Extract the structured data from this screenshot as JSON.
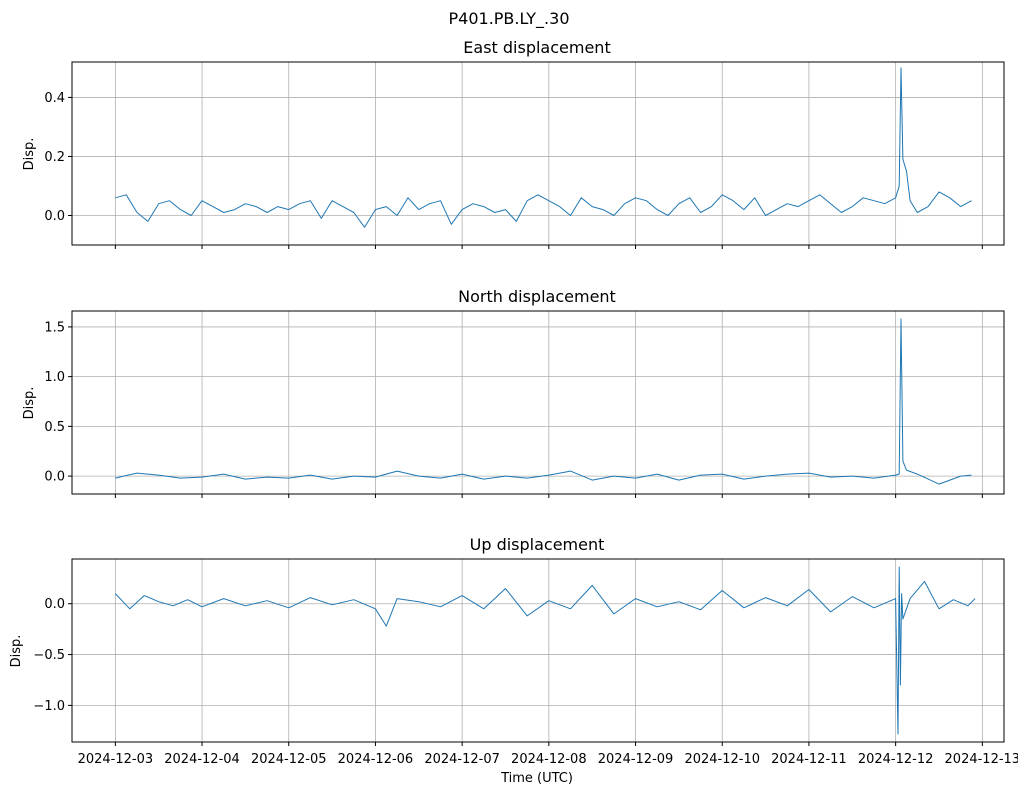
{
  "figure": {
    "suptitle": "P401.PB.LY_.30",
    "xlabel": "Time (UTC)"
  },
  "chart_data": [
    {
      "type": "line",
      "title": "East displacement",
      "ylabel": "Disp.",
      "xlabel": "",
      "grid": true,
      "color": "#1f77b4",
      "xlim": [
        "2024-12-02T12:00",
        "2024-12-13T06:00"
      ],
      "ylim": [
        -0.1,
        0.52
      ],
      "yticks": [
        0.0,
        0.2,
        0.4
      ],
      "yticklabels": [
        "0.0",
        "0.2",
        "0.4"
      ],
      "xticks": [
        "2024-12-03",
        "2024-12-04",
        "2024-12-05",
        "2024-12-06",
        "2024-12-07",
        "2024-12-08",
        "2024-12-09",
        "2024-12-10",
        "2024-12-11",
        "2024-12-12",
        "2024-12-13"
      ],
      "show_xticklabels": false,
      "series": [
        {
          "x": [
            "2024-12-03T00:00",
            "2024-12-03T03:00",
            "2024-12-03T06:00",
            "2024-12-03T09:00",
            "2024-12-03T12:00",
            "2024-12-03T15:00",
            "2024-12-03T18:00",
            "2024-12-03T21:00",
            "2024-12-04T00:00",
            "2024-12-04T03:00",
            "2024-12-04T06:00",
            "2024-12-04T09:00",
            "2024-12-04T12:00",
            "2024-12-04T15:00",
            "2024-12-04T18:00",
            "2024-12-04T21:00",
            "2024-12-05T00:00",
            "2024-12-05T03:00",
            "2024-12-05T06:00",
            "2024-12-05T09:00",
            "2024-12-05T12:00",
            "2024-12-05T15:00",
            "2024-12-05T18:00",
            "2024-12-05T21:00",
            "2024-12-06T00:00",
            "2024-12-06T03:00",
            "2024-12-06T06:00",
            "2024-12-06T09:00",
            "2024-12-06T12:00",
            "2024-12-06T15:00",
            "2024-12-06T18:00",
            "2024-12-06T21:00",
            "2024-12-07T00:00",
            "2024-12-07T03:00",
            "2024-12-07T06:00",
            "2024-12-07T09:00",
            "2024-12-07T12:00",
            "2024-12-07T15:00",
            "2024-12-07T18:00",
            "2024-12-07T21:00",
            "2024-12-08T00:00",
            "2024-12-08T03:00",
            "2024-12-08T06:00",
            "2024-12-08T09:00",
            "2024-12-08T12:00",
            "2024-12-08T15:00",
            "2024-12-08T18:00",
            "2024-12-08T21:00",
            "2024-12-09T00:00",
            "2024-12-09T03:00",
            "2024-12-09T06:00",
            "2024-12-09T09:00",
            "2024-12-09T12:00",
            "2024-12-09T15:00",
            "2024-12-09T18:00",
            "2024-12-09T21:00",
            "2024-12-10T00:00",
            "2024-12-10T03:00",
            "2024-12-10T06:00",
            "2024-12-10T09:00",
            "2024-12-10T12:00",
            "2024-12-10T15:00",
            "2024-12-10T18:00",
            "2024-12-10T21:00",
            "2024-12-11T00:00",
            "2024-12-11T03:00",
            "2024-12-11T06:00",
            "2024-12-11T09:00",
            "2024-12-11T12:00",
            "2024-12-11T15:00",
            "2024-12-11T18:00",
            "2024-12-11T21:00",
            "2024-12-12T00:00",
            "2024-12-12T01:00",
            "2024-12-12T01:30",
            "2024-12-12T02:00",
            "2024-12-12T03:00",
            "2024-12-12T04:00",
            "2024-12-12T06:00",
            "2024-12-12T09:00",
            "2024-12-12T12:00",
            "2024-12-12T15:00",
            "2024-12-12T18:00",
            "2024-12-12T21:00"
          ],
          "y": [
            0.06,
            0.07,
            0.01,
            -0.02,
            0.04,
            0.05,
            0.02,
            0.0,
            0.05,
            0.03,
            0.01,
            0.02,
            0.04,
            0.03,
            0.01,
            0.03,
            0.02,
            0.04,
            0.05,
            -0.01,
            0.05,
            0.03,
            0.01,
            -0.04,
            0.02,
            0.03,
            0.0,
            0.06,
            0.02,
            0.04,
            0.05,
            -0.03,
            0.02,
            0.04,
            0.03,
            0.01,
            0.02,
            -0.02,
            0.05,
            0.07,
            0.05,
            0.03,
            0.0,
            0.06,
            0.03,
            0.02,
            0.0,
            0.04,
            0.06,
            0.05,
            0.02,
            0.0,
            0.04,
            0.06,
            0.01,
            0.03,
            0.07,
            0.05,
            0.02,
            0.06,
            0.0,
            0.02,
            0.04,
            0.03,
            0.05,
            0.07,
            0.04,
            0.01,
            0.03,
            0.06,
            0.05,
            0.04,
            0.06,
            0.1,
            0.5,
            0.19,
            0.15,
            0.05,
            0.01,
            0.03,
            0.08,
            0.06,
            0.03,
            0.05
          ]
        }
      ]
    },
    {
      "type": "line",
      "title": "North displacement",
      "ylabel": "Disp.",
      "xlabel": "",
      "grid": true,
      "color": "#1f77b4",
      "xlim": [
        "2024-12-02T12:00",
        "2024-12-13T06:00"
      ],
      "ylim": [
        -0.18,
        1.66
      ],
      "yticks": [
        0.0,
        0.5,
        1.0,
        1.5
      ],
      "yticklabels": [
        "0.0",
        "0.5",
        "1.0",
        "1.5"
      ],
      "xticks": [
        "2024-12-03",
        "2024-12-04",
        "2024-12-05",
        "2024-12-06",
        "2024-12-07",
        "2024-12-08",
        "2024-12-09",
        "2024-12-10",
        "2024-12-11",
        "2024-12-12",
        "2024-12-13"
      ],
      "show_xticklabels": false,
      "series": [
        {
          "x": [
            "2024-12-03T00:00",
            "2024-12-03T06:00",
            "2024-12-03T12:00",
            "2024-12-03T18:00",
            "2024-12-04T00:00",
            "2024-12-04T06:00",
            "2024-12-04T12:00",
            "2024-12-04T18:00",
            "2024-12-05T00:00",
            "2024-12-05T06:00",
            "2024-12-05T12:00",
            "2024-12-05T18:00",
            "2024-12-06T00:00",
            "2024-12-06T06:00",
            "2024-12-06T12:00",
            "2024-12-06T18:00",
            "2024-12-07T00:00",
            "2024-12-07T06:00",
            "2024-12-07T12:00",
            "2024-12-07T18:00",
            "2024-12-08T00:00",
            "2024-12-08T06:00",
            "2024-12-08T12:00",
            "2024-12-08T18:00",
            "2024-12-09T00:00",
            "2024-12-09T06:00",
            "2024-12-09T12:00",
            "2024-12-09T18:00",
            "2024-12-10T00:00",
            "2024-12-10T06:00",
            "2024-12-10T12:00",
            "2024-12-10T18:00",
            "2024-12-11T00:00",
            "2024-12-11T06:00",
            "2024-12-11T12:00",
            "2024-12-11T18:00",
            "2024-12-12T00:00",
            "2024-12-12T01:00",
            "2024-12-12T01:30",
            "2024-12-12T02:00",
            "2024-12-12T03:00",
            "2024-12-12T06:00",
            "2024-12-12T12:00",
            "2024-12-12T18:00",
            "2024-12-12T21:00"
          ],
          "y": [
            -0.02,
            0.03,
            0.01,
            -0.02,
            -0.01,
            0.02,
            -0.03,
            -0.01,
            -0.02,
            0.01,
            -0.03,
            0.0,
            -0.01,
            0.05,
            0.0,
            -0.02,
            0.02,
            -0.03,
            0.0,
            -0.02,
            0.01,
            0.05,
            -0.04,
            0.0,
            -0.02,
            0.02,
            -0.04,
            0.01,
            0.02,
            -0.03,
            0.0,
            0.02,
            0.03,
            -0.01,
            0.0,
            -0.02,
            0.01,
            0.02,
            1.58,
            0.15,
            0.06,
            0.02,
            -0.08,
            0.0,
            0.01
          ]
        }
      ]
    },
    {
      "type": "line",
      "title": "Up displacement",
      "ylabel": "Disp.",
      "xlabel": "Time (UTC)",
      "grid": true,
      "color": "#1f77b4",
      "xlim": [
        "2024-12-02T12:00",
        "2024-12-13T06:00"
      ],
      "ylim": [
        -1.36,
        0.44
      ],
      "yticks": [
        -1.0,
        -0.5,
        0.0
      ],
      "yticklabels": [
        "−1.0",
        "−0.5",
        "0.0"
      ],
      "xticks": [
        "2024-12-03",
        "2024-12-04",
        "2024-12-05",
        "2024-12-06",
        "2024-12-07",
        "2024-12-08",
        "2024-12-09",
        "2024-12-10",
        "2024-12-11",
        "2024-12-12",
        "2024-12-13"
      ],
      "xticklabels": [
        "2024-12-03",
        "2024-12-04",
        "2024-12-05",
        "2024-12-06",
        "2024-12-07",
        "2024-12-08",
        "2024-12-09",
        "2024-12-10",
        "2024-12-11",
        "2024-12-12",
        "2024-12-13"
      ],
      "show_xticklabels": true,
      "series": [
        {
          "x": [
            "2024-12-03T00:00",
            "2024-12-03T04:00",
            "2024-12-03T08:00",
            "2024-12-03T12:00",
            "2024-12-03T16:00",
            "2024-12-03T20:00",
            "2024-12-04T00:00",
            "2024-12-04T06:00",
            "2024-12-04T12:00",
            "2024-12-04T18:00",
            "2024-12-05T00:00",
            "2024-12-05T06:00",
            "2024-12-05T12:00",
            "2024-12-05T18:00",
            "2024-12-06T00:00",
            "2024-12-06T03:00",
            "2024-12-06T06:00",
            "2024-12-06T12:00",
            "2024-12-06T18:00",
            "2024-12-07T00:00",
            "2024-12-07T06:00",
            "2024-12-07T12:00",
            "2024-12-07T18:00",
            "2024-12-08T00:00",
            "2024-12-08T06:00",
            "2024-12-08T12:00",
            "2024-12-08T18:00",
            "2024-12-09T00:00",
            "2024-12-09T06:00",
            "2024-12-09T12:00",
            "2024-12-09T18:00",
            "2024-12-10T00:00",
            "2024-12-10T06:00",
            "2024-12-10T12:00",
            "2024-12-10T18:00",
            "2024-12-11T00:00",
            "2024-12-11T06:00",
            "2024-12-11T12:00",
            "2024-12-11T18:00",
            "2024-12-12T00:00",
            "2024-12-12T00:40",
            "2024-12-12T01:00",
            "2024-12-12T01:20",
            "2024-12-12T01:40",
            "2024-12-12T02:00",
            "2024-12-12T04:00",
            "2024-12-12T08:00",
            "2024-12-12T12:00",
            "2024-12-12T16:00",
            "2024-12-12T20:00",
            "2024-12-12T22:00"
          ],
          "y": [
            0.1,
            -0.05,
            0.08,
            0.02,
            -0.02,
            0.04,
            -0.03,
            0.05,
            -0.02,
            0.03,
            -0.04,
            0.06,
            -0.01,
            0.04,
            -0.05,
            -0.22,
            0.05,
            0.02,
            -0.03,
            0.08,
            -0.05,
            0.15,
            -0.12,
            0.03,
            -0.05,
            0.18,
            -0.1,
            0.05,
            -0.03,
            0.02,
            -0.06,
            0.13,
            -0.04,
            0.06,
            -0.02,
            0.14,
            -0.08,
            0.07,
            -0.04,
            0.05,
            -1.28,
            0.36,
            -0.8,
            0.1,
            -0.15,
            0.05,
            0.22,
            -0.05,
            0.04,
            -0.02,
            0.05
          ]
        }
      ]
    }
  ]
}
